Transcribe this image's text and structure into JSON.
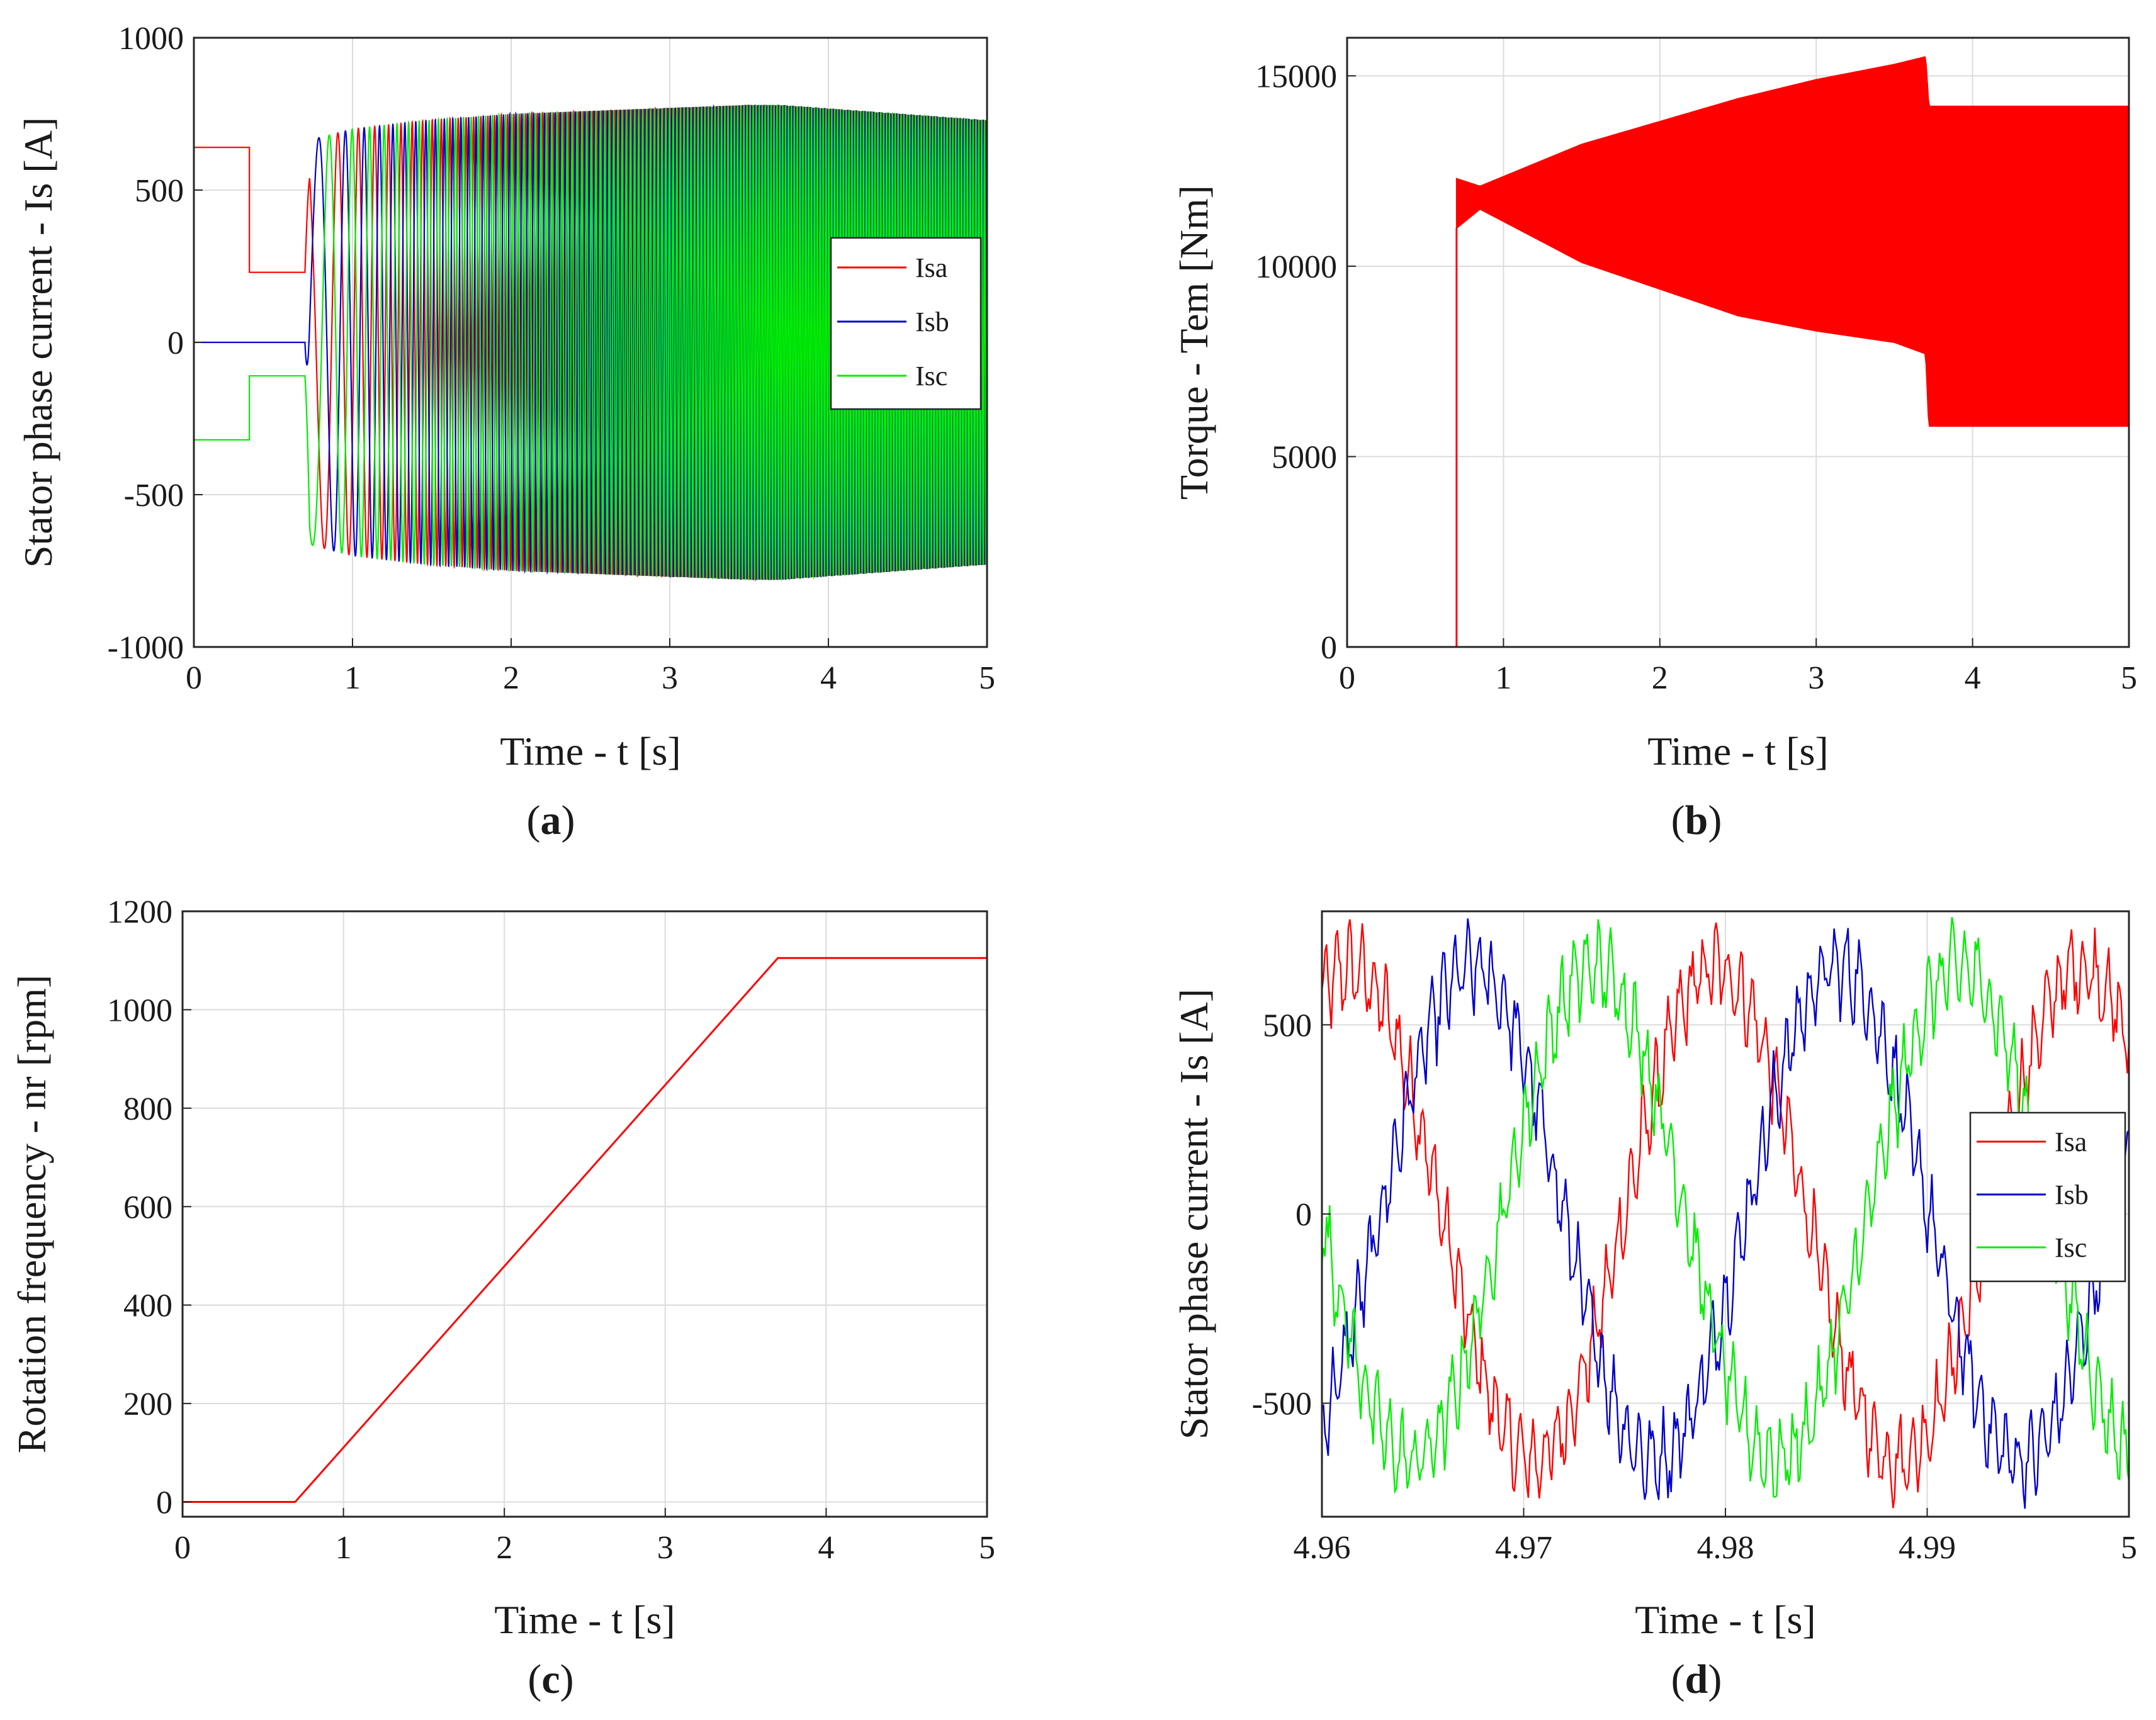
{
  "chart_data": [
    {
      "id": "a",
      "type": "line",
      "caption_letter": "a",
      "xlabel": "Time - t [s]",
      "ylabel": "Stator phase current - Is [A]",
      "xlim": [
        0,
        5
      ],
      "ylim": [
        -1000,
        1000
      ],
      "xticks": [
        0,
        1,
        2,
        3,
        4,
        5
      ],
      "yticks": [
        -1000,
        -500,
        0,
        500,
        1000
      ],
      "grid": true,
      "legend": {
        "location": "right",
        "entries": [
          "Isa",
          "Isb",
          "Isc"
        ]
      },
      "colors": {
        "Isa": "#ff0000",
        "Isb": "#0000cc",
        "Isc": "#00ee00"
      },
      "series": [
        {
          "name": "Isa",
          "segments": [
            [
              0,
              640
            ],
            [
              0.35,
              640
            ],
            [
              0.35,
              230
            ],
            [
              0.7,
              230
            ]
          ]
        },
        {
          "name": "Isb",
          "segments": [
            [
              0,
              0
            ],
            [
              0.7,
              0
            ]
          ]
        },
        {
          "name": "Isc",
          "segments": [
            [
              0,
              -320
            ],
            [
              0.35,
              -320
            ],
            [
              0.35,
              -110
            ],
            [
              0.7,
              -110
            ]
          ]
        }
      ],
      "envelope": {
        "t": [
          0.7,
          1.0,
          1.5,
          2.0,
          2.5,
          3.0,
          3.5,
          3.7,
          5.0
        ],
        "amp": [
          660,
          700,
          730,
          750,
          760,
          770,
          780,
          780,
          730
        ]
      },
      "frequency_ramp": {
        "t_start": 0.7,
        "f_start": 3,
        "t_end": 3.7,
        "f_end": 55
      }
    },
    {
      "id": "b",
      "type": "line",
      "caption_letter": "b",
      "xlabel": "Time - t [s]",
      "ylabel": "Torque - Tem [Nm]",
      "xlim": [
        0,
        5
      ],
      "ylim": [
        0,
        16000
      ],
      "xticks": [
        0,
        1,
        2,
        3,
        4,
        5
      ],
      "yticks": [
        0,
        5000,
        10000,
        15000
      ],
      "grid": true,
      "colors": {
        "Tem": "#ff0000"
      },
      "series": [
        {
          "name": "Tem",
          "segments": [
            [
              0,
              0
            ],
            [
              0.7,
              0
            ],
            [
              0.7,
              11000
            ]
          ]
        }
      ],
      "band": {
        "t": [
          0.7,
          0.85,
          1.5,
          2.0,
          2.5,
          3.0,
          3.5,
          3.7,
          3.72,
          5.0
        ],
        "upper": [
          12300,
          12100,
          13200,
          13800,
          14400,
          14900,
          15300,
          15500,
          14200,
          14200
        ],
        "lower": [
          11000,
          11500,
          10100,
          9400,
          8700,
          8300,
          8000,
          7700,
          5800,
          5800
        ]
      }
    },
    {
      "id": "c",
      "type": "line",
      "caption_letter": "c",
      "xlabel": "Time - t [s]",
      "ylabel": "Rotation frequency - nr [rpm]",
      "xlim": [
        0,
        5
      ],
      "ylim": [
        -30,
        1200
      ],
      "xticks": [
        0,
        1,
        2,
        3,
        4,
        5
      ],
      "yticks": [
        0,
        200,
        400,
        600,
        800,
        1000,
        1200
      ],
      "grid": true,
      "colors": {
        "nr": "#ff0000"
      },
      "series": [
        {
          "name": "nr",
          "x": [
            0,
            0.7,
            3.7,
            5.0
          ],
          "y": [
            0,
            0,
            1105,
            1105
          ]
        }
      ]
    },
    {
      "id": "d",
      "type": "line",
      "caption_letter": "d",
      "xlabel": "Time - t [s]",
      "ylabel": "Stator phase current - Is [A]",
      "xlim": [
        4.96,
        5
      ],
      "ylim": [
        -800,
        800
      ],
      "xticks": [
        4.96,
        4.97,
        4.98,
        4.99,
        5
      ],
      "xticklabels": [
        "4.96",
        "4.97",
        "4.98",
        "4.99",
        "5"
      ],
      "yticks": [
        -500,
        0,
        500
      ],
      "grid": true,
      "legend": {
        "location": "right",
        "entries": [
          "Isa",
          "Isb",
          "Isc"
        ]
      },
      "colors": {
        "Isa": "#ff0000",
        "Isb": "#0000cc",
        "Isc": "#00ee00"
      },
      "fundamental": {
        "amplitude": 650,
        "frequency_hz": 55.2,
        "phase_deg": {
          "Isa": 62,
          "Isb": -58,
          "Isc": 182
        }
      },
      "ripple": {
        "amplitude": 90,
        "frequency_hz": 1650
      }
    }
  ]
}
